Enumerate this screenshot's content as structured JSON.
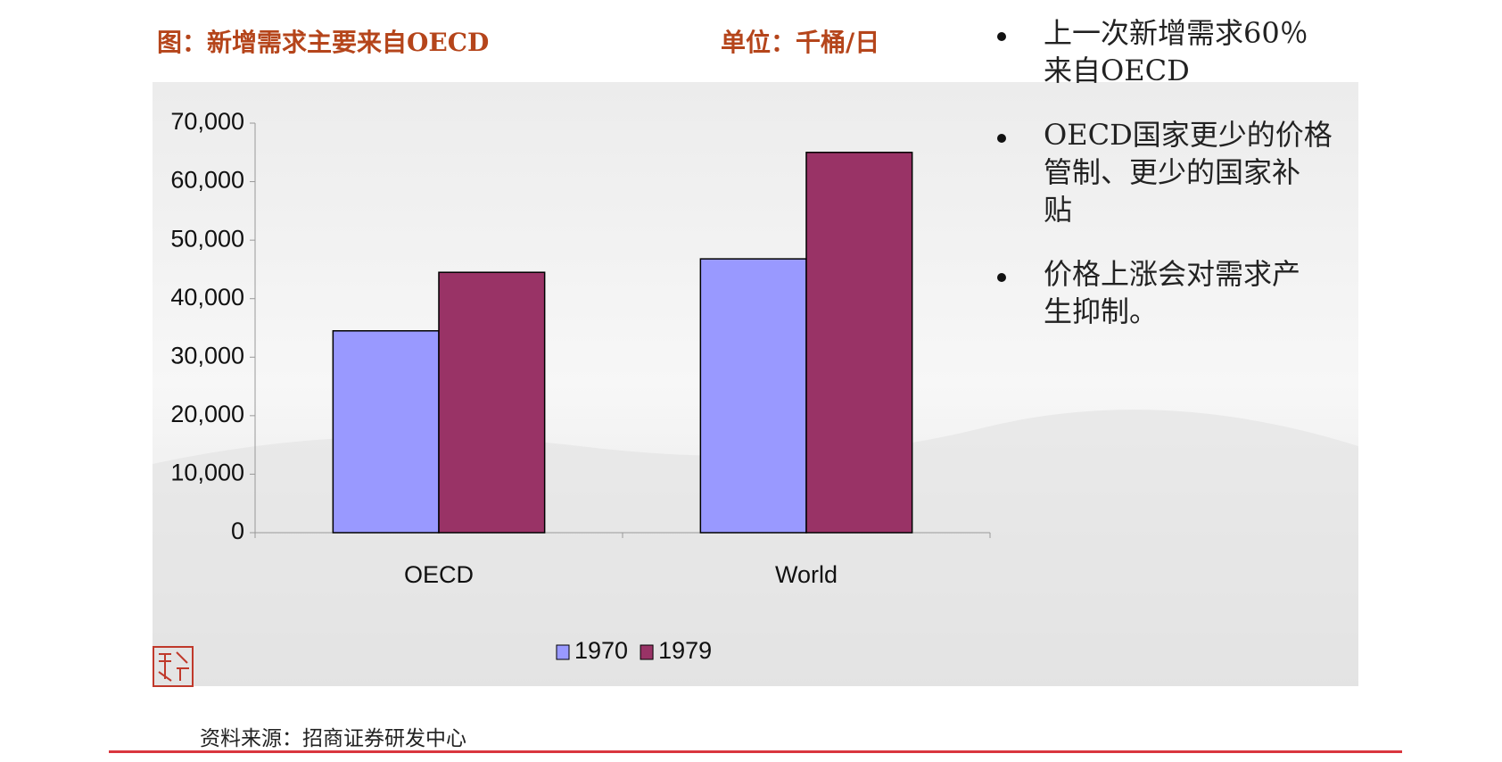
{
  "chart_data": {
    "type": "bar",
    "title": "图：新增需求主要来自OECD",
    "unit_label": "单位：千桶/日",
    "categories": [
      "OECD",
      "World"
    ],
    "series": [
      {
        "name": "1970",
        "color": "#9999ff",
        "values": [
          34500,
          46800
        ]
      },
      {
        "name": "1979",
        "color": "#993366",
        "values": [
          44500,
          65000
        ]
      }
    ],
    "ylim": [
      0,
      70000
    ],
    "yticks": [
      0,
      {
        "value": 10000,
        "label": "10,000"
      },
      {
        "value": 20000,
        "label": "20,000"
      },
      {
        "value": 30000,
        "label": "30,000"
      },
      {
        "value": 40000,
        "label": "40,000"
      },
      {
        "value": 50000,
        "label": "50,000"
      },
      {
        "value": 60000,
        "label": "60,000"
      },
      {
        "value": 70000,
        "label": "70,000"
      }
    ],
    "legend": "bottom"
  },
  "bullets": [
    [
      "上一次新增需求60％",
      "来自OECD"
    ],
    [
      "OECD国家更少的价格",
      "管制、更少的国家补",
      "贴"
    ],
    [
      "价格上涨会对需求产",
      "生抑制。"
    ]
  ],
  "source": "资料来源：招商证券研发中心"
}
